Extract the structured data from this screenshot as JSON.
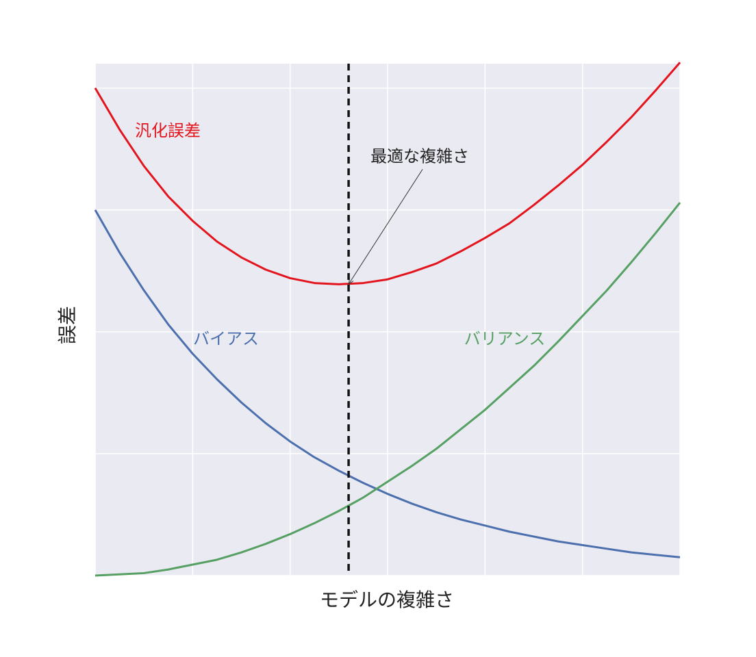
{
  "chart_data": {
    "type": "line",
    "xlabel": "モデルの複雑さ",
    "ylabel": "誤差",
    "x": [
      0,
      0.25,
      0.5,
      0.75,
      1,
      1.25,
      1.5,
      1.75,
      2,
      2.25,
      2.5,
      2.75,
      3,
      3.25,
      3.5,
      3.75,
      4,
      4.25,
      4.5,
      4.75,
      5,
      5.25,
      5.5,
      5.75,
      6
    ],
    "series": [
      {
        "name": "汎化誤差",
        "color": "#e3141c",
        "values": [
          4.0,
          3.66,
          3.36,
          3.11,
          2.91,
          2.74,
          2.61,
          2.51,
          2.44,
          2.4,
          2.39,
          2.4,
          2.43,
          2.49,
          2.56,
          2.66,
          2.77,
          2.89,
          3.04,
          3.2,
          3.37,
          3.56,
          3.76,
          3.98,
          4.21
        ]
      },
      {
        "name": "バイアス",
        "color": "#4c6fae",
        "values": [
          3.0,
          2.65,
          2.34,
          2.06,
          1.82,
          1.61,
          1.42,
          1.25,
          1.1,
          0.97,
          0.86,
          0.76,
          0.67,
          0.59,
          0.52,
          0.46,
          0.41,
          0.36,
          0.32,
          0.28,
          0.25,
          0.22,
          0.19,
          0.17,
          0.15
        ]
      },
      {
        "name": "バリアンス",
        "color": "#55a062",
        "values": [
          0,
          0.01,
          0.02,
          0.05,
          0.09,
          0.13,
          0.19,
          0.26,
          0.34,
          0.43,
          0.53,
          0.64,
          0.77,
          0.9,
          1.04,
          1.2,
          1.36,
          1.54,
          1.72,
          1.92,
          2.13,
          2.34,
          2.57,
          2.81,
          3.06
        ]
      }
    ],
    "optimal_x": 2.6,
    "annotation": {
      "text": "最適な複雑さ",
      "x": 2.6,
      "y": 2.39
    },
    "xlim": [
      0,
      6
    ],
    "ylim": [
      0,
      4.2
    ],
    "xticks": [
      0,
      1,
      2,
      3,
      4,
      5,
      6
    ],
    "yticks": [
      0,
      1,
      2,
      3,
      4
    ],
    "grid": true,
    "background": "#eaeaf2"
  }
}
